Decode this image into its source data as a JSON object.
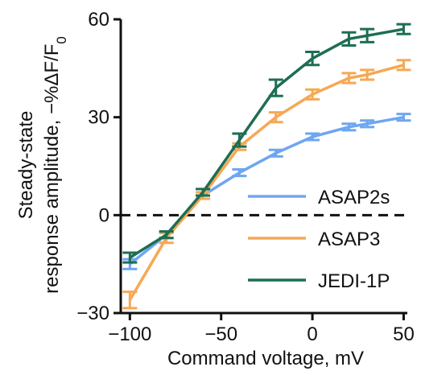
{
  "chart_data": {
    "type": "line",
    "xlabel": "Command voltage, mV",
    "ylabel_line1": "Steady-state",
    "ylabel_line2_prefix": "response amplitude, −%ΔF/F",
    "ylabel_line2_sub": "0",
    "xlim": [
      -105,
      52
    ],
    "ylim": [
      -30,
      60
    ],
    "xticks": [
      -100,
      -50,
      0,
      50
    ],
    "xtick_labels": [
      "−100",
      "−50",
      "0",
      "50"
    ],
    "yticks": [
      -30,
      0,
      30,
      60
    ],
    "ytick_labels": [
      "−30",
      "0",
      "30",
      "60"
    ],
    "zero_line": "dashed",
    "legend_position": "bottom-right",
    "series": [
      {
        "name": "ASAP2s",
        "color": "#6ea6f0",
        "x": [
          -100,
          -80,
          -60,
          -40,
          -20,
          0,
          20,
          30,
          50
        ],
        "y": [
          -15,
          -6,
          6,
          13,
          19,
          24,
          27,
          28,
          30
        ],
        "err": [
          1.5,
          1.0,
          1.0,
          1.0,
          1.0,
          1.0,
          1.0,
          1.0,
          1.0
        ]
      },
      {
        "name": "ASAP3",
        "color": "#f6a854",
        "x": [
          -100,
          -80,
          -60,
          -40,
          -20,
          0,
          20,
          30,
          50
        ],
        "y": [
          -26,
          -7,
          6,
          21,
          30,
          37,
          42,
          43,
          46
        ],
        "err": [
          2.5,
          1.5,
          1.0,
          1.0,
          1.5,
          1.5,
          1.5,
          1.5,
          1.5
        ]
      },
      {
        "name": "JEDI-1P",
        "color": "#1d6e52",
        "x": [
          -100,
          -80,
          -60,
          -40,
          -20,
          0,
          20,
          30,
          50
        ],
        "y": [
          -13,
          -6,
          7,
          23,
          39,
          48,
          54,
          55,
          57
        ],
        "err": [
          1.5,
          1.0,
          1.0,
          2.0,
          2.5,
          2.0,
          2.0,
          2.0,
          1.5
        ]
      }
    ]
  }
}
